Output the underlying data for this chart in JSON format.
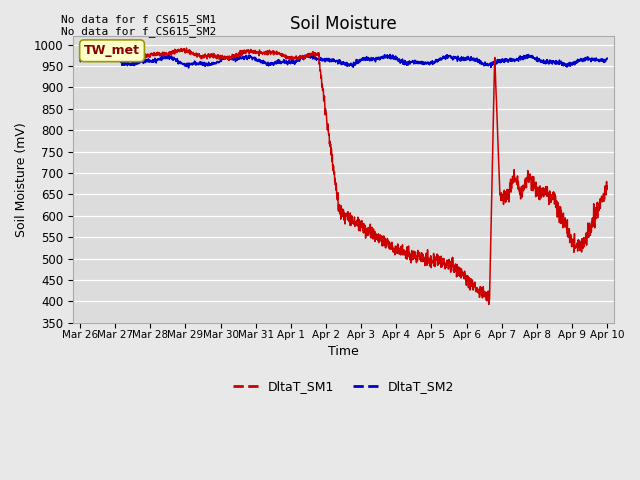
{
  "title": "Soil Moisture",
  "xlabel": "Time",
  "ylabel": "Soil Moisture (mV)",
  "ylim": [
    350,
    1020
  ],
  "yticks": [
    350,
    400,
    450,
    500,
    550,
    600,
    650,
    700,
    750,
    800,
    850,
    900,
    950,
    1000
  ],
  "background_color": "#e8e8e8",
  "sm1_color": "#cc0000",
  "sm2_color": "#0000cc",
  "legend_label_sm1": "DltaT_SM1",
  "legend_label_sm2": "DltaT_SM2",
  "annotation_text1": "No data for f CS615_SM1",
  "annotation_text2": "No data for f̲CS615̲SM2",
  "box_label": "TW_met",
  "tick_labels": [
    "Mar 26",
    "Mar 27",
    "Mar 28",
    "Mar 29",
    "Mar 30",
    "Mar 31",
    "Apr 1",
    "Apr 2",
    "Apr 3",
    "Apr 4",
    "Apr 5",
    "Apr 6",
    "Apr 7",
    "Apr 8",
    "Apr 9",
    "Apr 10"
  ]
}
